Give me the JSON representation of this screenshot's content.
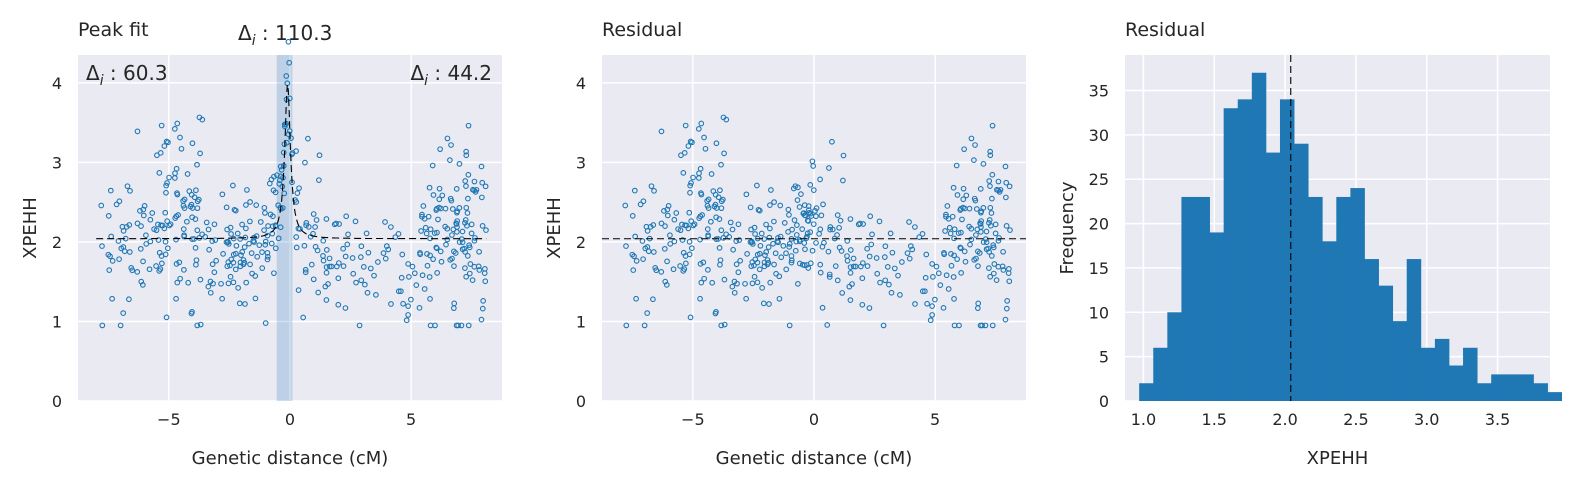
{
  "chart_data": [
    {
      "type": "scatter",
      "title": "Peak fit",
      "xlabel": "Genetic distance (cM)",
      "ylabel": "XPEHH",
      "xlim": [
        -8.75,
        8.75
      ],
      "ylim": [
        0,
        4.35
      ],
      "xticks": [
        -5,
        0,
        5
      ],
      "xtick_labels": [
        "−5",
        "0",
        "5"
      ],
      "yticks": [
        0,
        1,
        2,
        3,
        4
      ],
      "ytick_labels": [
        "0",
        "1",
        "2",
        "3",
        "4"
      ],
      "grid": true,
      "point_color": "#1f77b4",
      "annotations": [
        "Δi : 60.3",
        "Δi : 110.3",
        "Δi : 44.2"
      ],
      "fit": {
        "baseline": 2.04,
        "peak_center": -0.1,
        "peak_height": 1.95,
        "highlight_band": [
          -0.55,
          0.1
        ]
      }
    },
    {
      "type": "scatter",
      "title": "Residual",
      "xlabel": "Genetic distance (cM)",
      "ylabel": "XPEHH",
      "xlim": [
        -8.75,
        8.75
      ],
      "ylim": [
        0,
        4.35
      ],
      "xticks": [
        -5,
        0,
        5
      ],
      "xtick_labels": [
        "−5",
        "0",
        "5"
      ],
      "yticks": [
        0,
        1,
        2,
        3,
        4
      ],
      "ytick_labels": [
        "0",
        "1",
        "2",
        "3",
        "4"
      ],
      "grid": true,
      "point_color": "#1f77b4",
      "reference_line": 2.04
    },
    {
      "type": "bar",
      "title": "Residual",
      "xlabel": "XPEHH",
      "ylabel": "Frequency",
      "xlim": [
        0.87,
        3.87
      ],
      "ylim": [
        0,
        39
      ],
      "xticks": [
        1.0,
        1.5,
        2.0,
        2.5,
        3.0,
        3.5
      ],
      "xtick_labels": [
        "1.0",
        "1.5",
        "2.0",
        "2.5",
        "3.0",
        "3.5"
      ],
      "yticks": [
        0,
        5,
        10,
        15,
        20,
        25,
        30,
        35
      ],
      "ytick_labels": [
        "0",
        "5",
        "10",
        "15",
        "20",
        "25",
        "30",
        "35"
      ],
      "bin_start": 0.97,
      "bin_width": 0.0994,
      "values": [
        2,
        6,
        10,
        23,
        23,
        19,
        33,
        34,
        37,
        28,
        34,
        29,
        23,
        18,
        23,
        24,
        16,
        13,
        9,
        16,
        6,
        7,
        4,
        6,
        2,
        3,
        3,
        3,
        2,
        1
      ],
      "mean_line": 2.04,
      "bar_color": "#1f77b4",
      "grid": true
    }
  ]
}
